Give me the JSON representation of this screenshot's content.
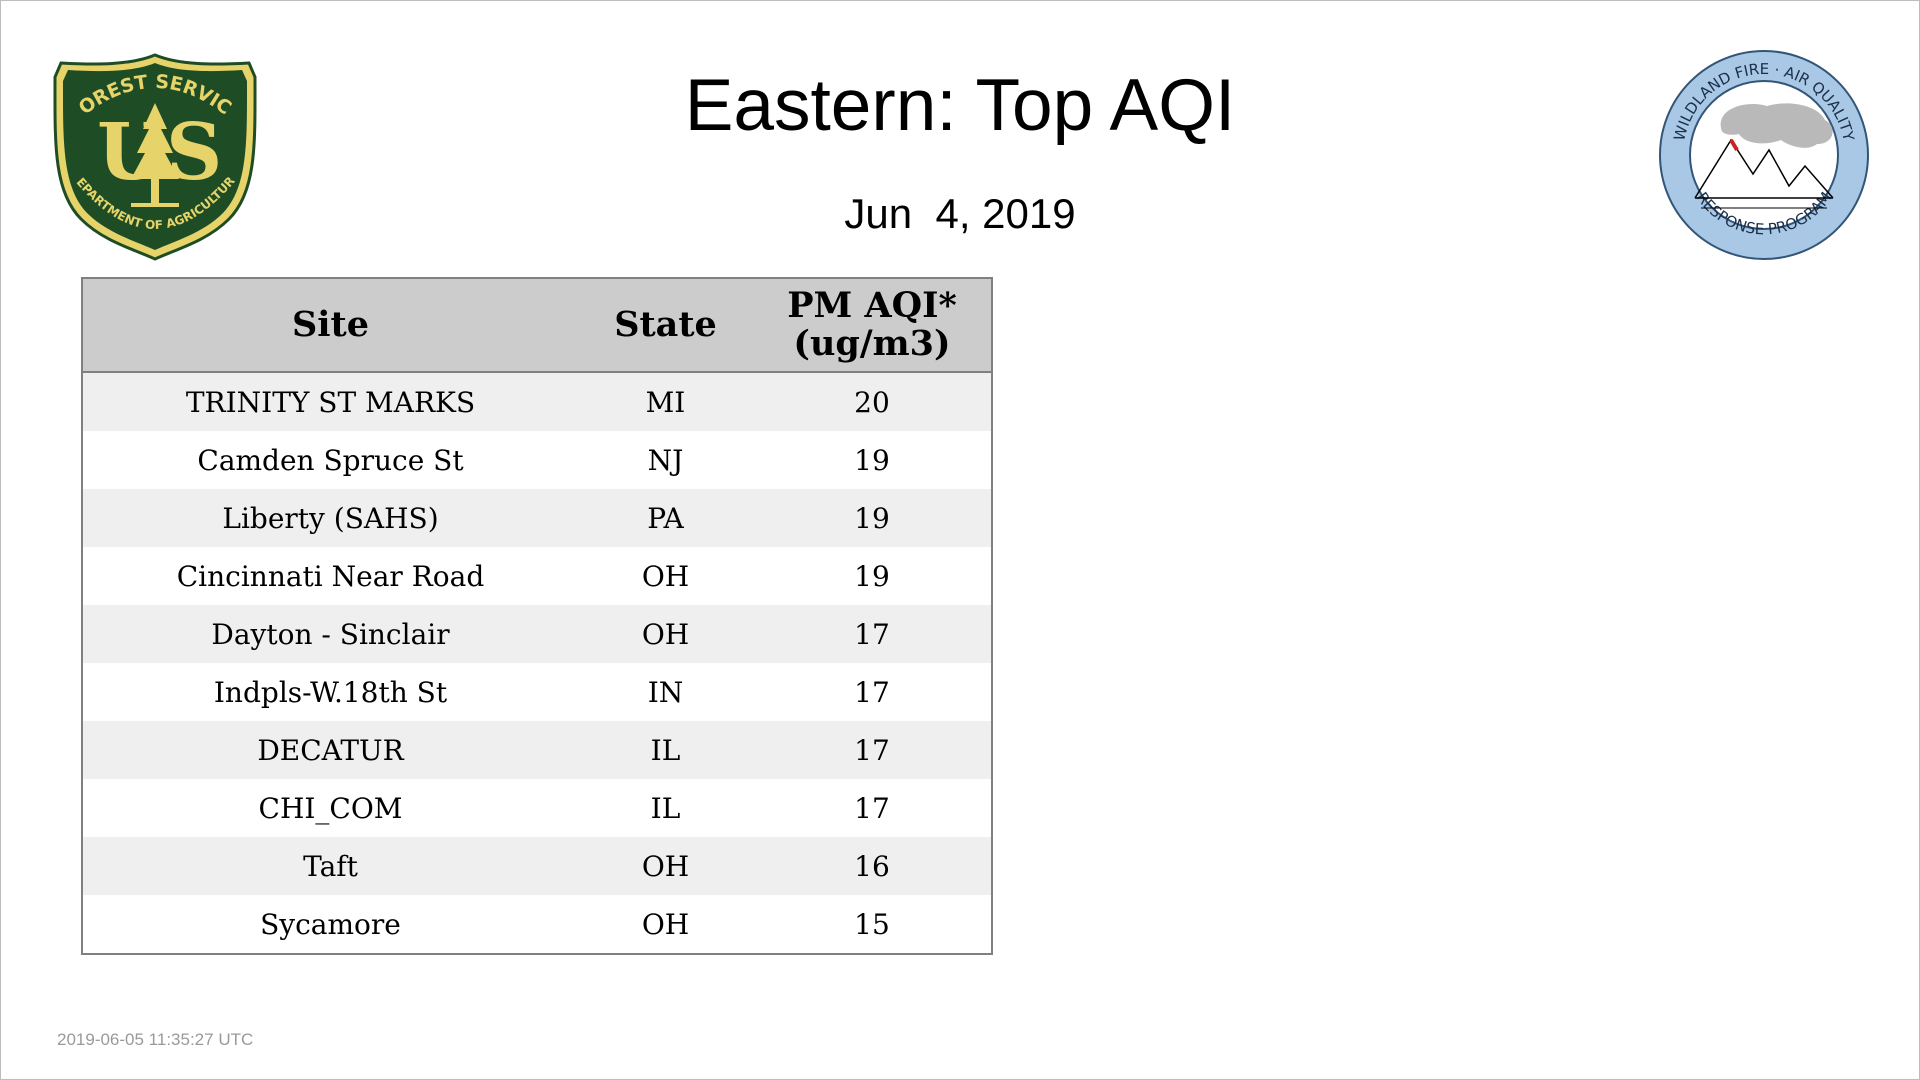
{
  "title": "Eastern: Top AQI",
  "date": "Jun  4, 2019",
  "logos": {
    "left_text_top": "FOREST SERVICE",
    "left_text_bottom": "DEPARTMENT OF AGRICULTURE",
    "left_letters_u": "U",
    "left_letters_s": "S",
    "right_text_top": "WILDLAND FIRE · AIR QUALITY",
    "right_text_bottom": "RESPONSE PROGRAM"
  },
  "table": {
    "headers": {
      "site": "Site",
      "state": "State",
      "aqi_line1": "PM AQI*",
      "aqi_line2": "(ug/m3)"
    },
    "rows": [
      {
        "site": "TRINITY ST MARKS",
        "state": "MI",
        "aqi": "20"
      },
      {
        "site": "Camden Spruce St",
        "state": "NJ",
        "aqi": "19"
      },
      {
        "site": "Liberty (SAHS)",
        "state": "PA",
        "aqi": "19"
      },
      {
        "site": "Cincinnati Near Road",
        "state": "OH",
        "aqi": "19"
      },
      {
        "site": "Dayton - Sinclair",
        "state": "OH",
        "aqi": "17"
      },
      {
        "site": "Indpls-W.18th St",
        "state": "IN",
        "aqi": "17"
      },
      {
        "site": "DECATUR",
        "state": "IL",
        "aqi": "17"
      },
      {
        "site": "CHI_COM",
        "state": "IL",
        "aqi": "17"
      },
      {
        "site": "Taft",
        "state": "OH",
        "aqi": "16"
      },
      {
        "site": "Sycamore",
        "state": "OH",
        "aqi": "15"
      }
    ]
  },
  "timestamp": "2019-06-05 11:35:27 UTC",
  "colors": {
    "shield_green": "#1e4d25",
    "shield_yellow": "#e6d36a",
    "badge_blue": "#a9c8e6",
    "header_gray": "#cccccc",
    "stripe_gray": "#efefef"
  }
}
